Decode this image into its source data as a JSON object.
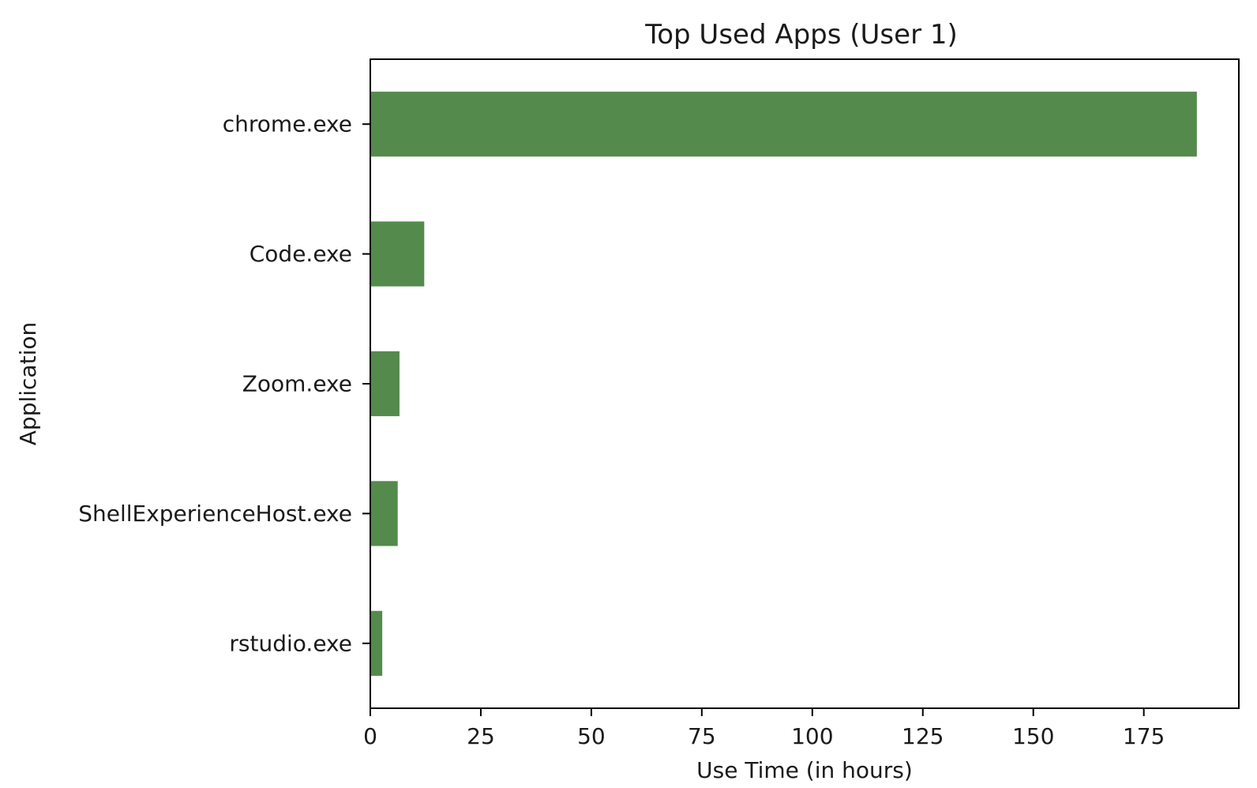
{
  "chart_data": {
    "type": "bar",
    "orientation": "horizontal",
    "title": "Top Used Apps (User 1)",
    "xlabel": "Use Time (in hours)",
    "ylabel": "Application",
    "categories": [
      "chrome.exe",
      "Code.exe",
      "Zoom.exe",
      "ShellExperienceHost.exe",
      "rstudio.exe"
    ],
    "values": [
      187,
      12.2,
      6.6,
      6.2,
      2.7
    ],
    "xlim": [
      0,
      196.5
    ],
    "xticks": [
      0,
      25,
      50,
      75,
      100,
      125,
      150,
      175
    ],
    "grid": false,
    "bar_color": "#548a4c"
  }
}
